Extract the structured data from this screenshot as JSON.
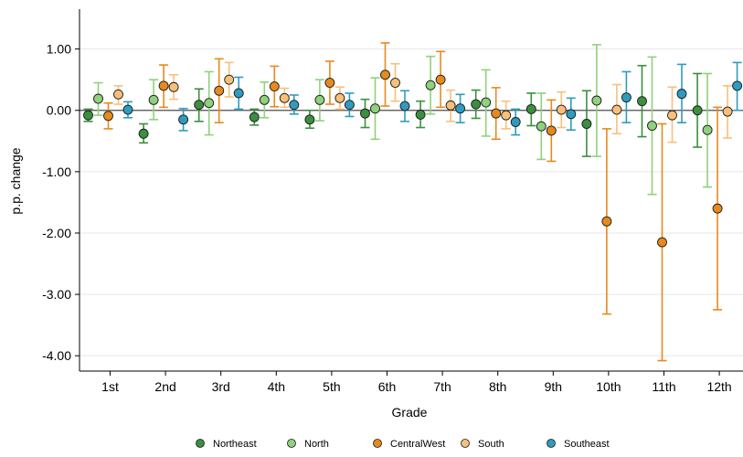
{
  "chart_data": {
    "type": "scatter",
    "subtype": "point-with-error-bars",
    "xlabel": "Grade",
    "ylabel": "p.p. change",
    "categories": [
      "1st",
      "2nd",
      "3rd",
      "4th",
      "5th",
      "6th",
      "7th",
      "8th",
      "9th",
      "10th",
      "11th",
      "12th"
    ],
    "yticks": [
      1.0,
      0.0,
      -1.0,
      -2.0,
      -3.0,
      -4.0
    ],
    "ytick_labels": [
      "1.00",
      "0.00",
      "-1.00",
      "-2.00",
      "-3.00",
      "-4.00"
    ],
    "ylim": [
      -4.25,
      1.65
    ],
    "grid": "horizontal",
    "reference_line": 0,
    "legend_position": "bottom",
    "series": [
      {
        "name": "Northeast",
        "color": "#3b8f3e",
        "points": [
          {
            "y": -0.08,
            "lo": -0.18,
            "hi": 0.02
          },
          {
            "y": -0.38,
            "lo": -0.53,
            "hi": -0.22
          },
          {
            "y": 0.09,
            "lo": -0.18,
            "hi": 0.35
          },
          {
            "y": -0.11,
            "lo": -0.24,
            "hi": 0.02
          },
          {
            "y": -0.15,
            "lo": -0.29,
            "hi": 0.0
          },
          {
            "y": -0.05,
            "lo": -0.28,
            "hi": 0.18
          },
          {
            "y": -0.07,
            "lo": -0.28,
            "hi": 0.15
          },
          {
            "y": 0.1,
            "lo": -0.13,
            "hi": 0.33
          },
          {
            "y": 0.02,
            "lo": -0.25,
            "hi": 0.28
          },
          {
            "y": -0.22,
            "lo": -0.75,
            "hi": 0.32
          },
          {
            "y": 0.15,
            "lo": -0.43,
            "hi": 0.73
          },
          {
            "y": 0.0,
            "lo": -0.6,
            "hi": 0.6
          }
        ]
      },
      {
        "name": "North",
        "color": "#8fd17c",
        "points": [
          {
            "y": 0.19,
            "lo": -0.08,
            "hi": 0.45
          },
          {
            "y": 0.17,
            "lo": -0.15,
            "hi": 0.5
          },
          {
            "y": 0.12,
            "lo": -0.4,
            "hi": 0.63
          },
          {
            "y": 0.17,
            "lo": -0.12,
            "hi": 0.46
          },
          {
            "y": 0.17,
            "lo": -0.17,
            "hi": 0.5
          },
          {
            "y": 0.03,
            "lo": -0.47,
            "hi": 0.53
          },
          {
            "y": 0.41,
            "lo": -0.06,
            "hi": 0.88
          },
          {
            "y": 0.13,
            "lo": -0.42,
            "hi": 0.66
          },
          {
            "y": -0.26,
            "lo": -0.8,
            "hi": 0.28
          },
          {
            "y": 0.16,
            "lo": -0.75,
            "hi": 1.07
          },
          {
            "y": -0.25,
            "lo": -1.37,
            "hi": 0.87
          },
          {
            "y": -0.32,
            "lo": -1.25,
            "hi": 0.6
          }
        ]
      },
      {
        "name": "CentralWest",
        "color": "#e8891d",
        "points": [
          {
            "y": -0.09,
            "lo": -0.3,
            "hi": 0.12
          },
          {
            "y": 0.4,
            "lo": 0.05,
            "hi": 0.74
          },
          {
            "y": 0.32,
            "lo": -0.2,
            "hi": 0.84
          },
          {
            "y": 0.39,
            "lo": 0.06,
            "hi": 0.72
          },
          {
            "y": 0.45,
            "lo": 0.1,
            "hi": 0.8
          },
          {
            "y": 0.58,
            "lo": 0.07,
            "hi": 1.1
          },
          {
            "y": 0.5,
            "lo": 0.05,
            "hi": 0.96
          },
          {
            "y": -0.05,
            "lo": -0.47,
            "hi": 0.37
          },
          {
            "y": -0.33,
            "lo": -0.83,
            "hi": 0.17
          },
          {
            "y": -1.81,
            "lo": -3.32,
            "hi": -0.3
          },
          {
            "y": -2.15,
            "lo": -4.08,
            "hi": -0.22
          },
          {
            "y": -1.6,
            "lo": -3.25,
            "hi": 0.05
          }
        ]
      },
      {
        "name": "South",
        "color": "#f7c07a",
        "points": [
          {
            "y": 0.26,
            "lo": 0.1,
            "hi": 0.4
          },
          {
            "y": 0.38,
            "lo": 0.18,
            "hi": 0.58
          },
          {
            "y": 0.5,
            "lo": 0.22,
            "hi": 0.78
          },
          {
            "y": 0.2,
            "lo": 0.05,
            "hi": 0.36
          },
          {
            "y": 0.2,
            "lo": 0.02,
            "hi": 0.38
          },
          {
            "y": 0.45,
            "lo": 0.15,
            "hi": 0.76
          },
          {
            "y": 0.08,
            "lo": -0.18,
            "hi": 0.33
          },
          {
            "y": -0.08,
            "lo": -0.3,
            "hi": 0.15
          },
          {
            "y": 0.01,
            "lo": -0.28,
            "hi": 0.3
          },
          {
            "y": 0.01,
            "lo": -0.38,
            "hi": 0.42
          },
          {
            "y": -0.08,
            "lo": -0.52,
            "hi": 0.38
          },
          {
            "y": -0.02,
            "lo": -0.45,
            "hi": 0.4
          }
        ]
      },
      {
        "name": "Southeast",
        "color": "#2f9bbf",
        "points": [
          {
            "y": 0.01,
            "lo": -0.12,
            "hi": 0.14
          },
          {
            "y": -0.15,
            "lo": -0.33,
            "hi": 0.03
          },
          {
            "y": 0.28,
            "lo": 0.02,
            "hi": 0.54
          },
          {
            "y": 0.09,
            "lo": -0.06,
            "hi": 0.25
          },
          {
            "y": 0.09,
            "lo": -0.1,
            "hi": 0.28
          },
          {
            "y": 0.07,
            "lo": -0.18,
            "hi": 0.32
          },
          {
            "y": 0.03,
            "lo": -0.2,
            "hi": 0.26
          },
          {
            "y": -0.19,
            "lo": -0.4,
            "hi": 0.02
          },
          {
            "y": -0.06,
            "lo": -0.32,
            "hi": 0.2
          },
          {
            "y": 0.21,
            "lo": -0.2,
            "hi": 0.63
          },
          {
            "y": 0.27,
            "lo": -0.2,
            "hi": 0.75
          },
          {
            "y": 0.4,
            "lo": 0.0,
            "hi": 0.78
          }
        ]
      }
    ]
  }
}
